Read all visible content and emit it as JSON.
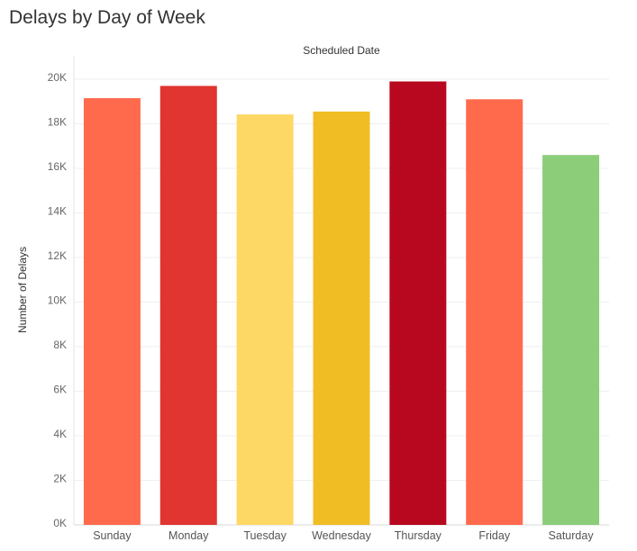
{
  "title": "Delays by Day of Week",
  "chart_data": {
    "type": "bar",
    "title": "Delays by Day of Week",
    "xlabel": "Scheduled Date",
    "ylabel": "Number of Delays",
    "categories": [
      "Sunday",
      "Monday",
      "Tuesday",
      "Wednesday",
      "Thursday",
      "Friday",
      "Saturday"
    ],
    "values": [
      19150,
      19700,
      18420,
      18550,
      19900,
      19100,
      16600
    ],
    "colors": [
      "#ff6a4d",
      "#e03531",
      "#fdd865",
      "#f0bd24",
      "#b8081f",
      "#ff6a4d",
      "#8ccd7a"
    ],
    "ylim": [
      0,
      20000
    ],
    "yticks": [
      0,
      2000,
      4000,
      6000,
      8000,
      10000,
      12000,
      14000,
      16000,
      18000,
      20000
    ],
    "ytick_labels": [
      "0K",
      "2K",
      "4K",
      "6K",
      "8K",
      "10K",
      "12K",
      "14K",
      "16K",
      "18K",
      "20K"
    ],
    "grid": true,
    "legend": "none"
  }
}
